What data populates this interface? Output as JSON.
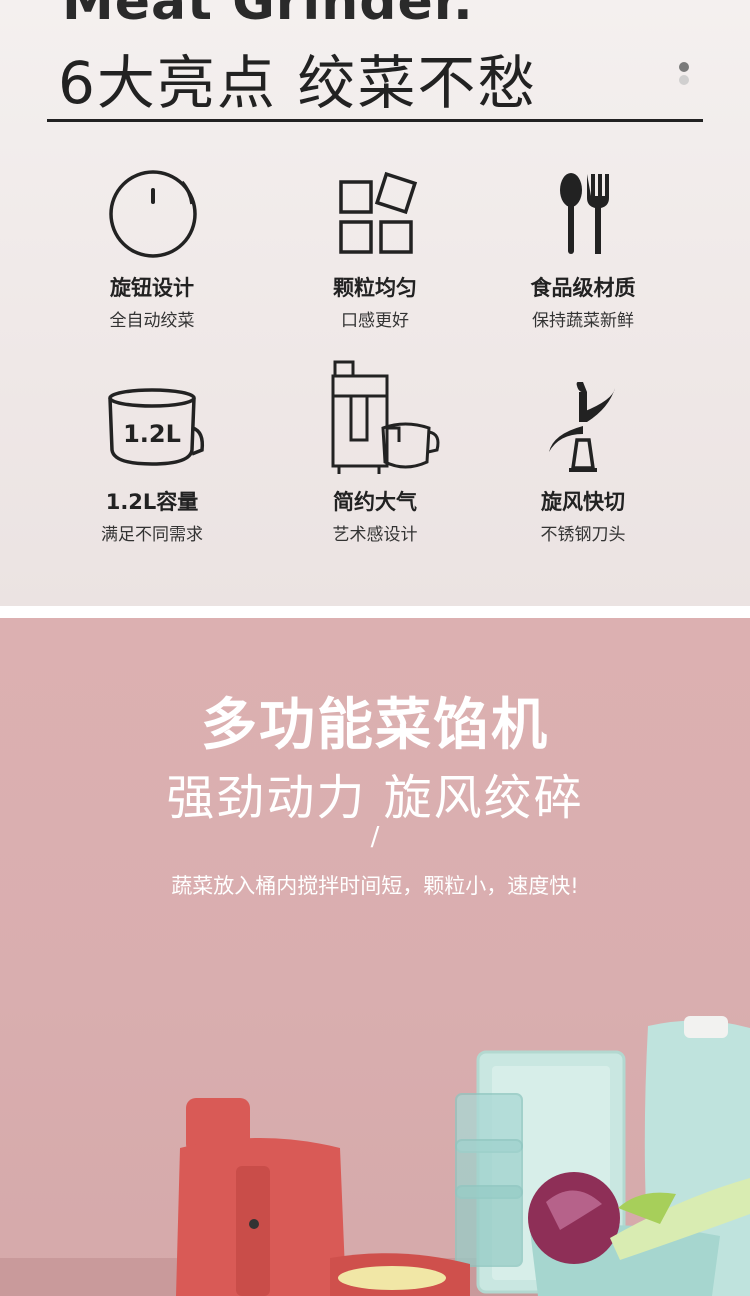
{
  "header": {
    "title_en": "Meat Grinder.",
    "title": "6大亮点 绞菜不愁",
    "dot_colors": [
      "#7a7a7a",
      "#d0cfcf"
    ]
  },
  "features": [
    {
      "icon": "knob-icon",
      "title": "旋钮设计",
      "subtitle": "全自动绞菜"
    },
    {
      "icon": "granules-icon",
      "title": "颗粒均匀",
      "subtitle": "口感更好"
    },
    {
      "icon": "spoon-fork-icon",
      "title": "食品级材质",
      "subtitle": "保持蔬菜新鲜"
    },
    {
      "icon": "bowl-capacity-icon",
      "icon_text": "1.2L",
      "title": "1.2L容量",
      "subtitle": "满足不同需求"
    },
    {
      "icon": "grinder-icon",
      "title": "简约大气",
      "subtitle": "艺术感设计"
    },
    {
      "icon": "blade-icon",
      "title": "旋风快切",
      "subtitle": "不锈钢刀头"
    }
  ],
  "promo": {
    "title": "多功能菜馅机",
    "subtitle": "强劲动力 旋风绞碎",
    "slash": "/",
    "description": "蔬菜放入桶内搅拌时间短，颗粒小，速度快!"
  },
  "colors": {
    "top_bg": "#f1ecea",
    "bottom_bg": "#d9aeaf",
    "grinder_red": "#d95a56",
    "mint": "#bfe3dd"
  }
}
